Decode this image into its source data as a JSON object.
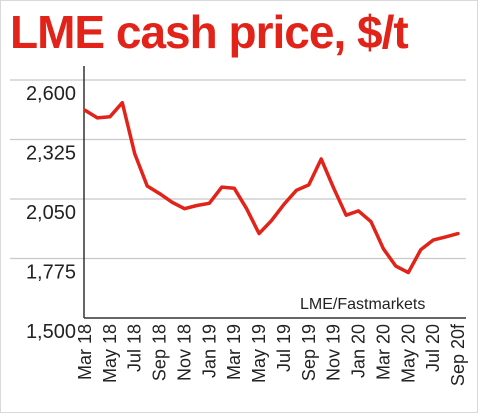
{
  "chart_data": {
    "type": "line",
    "title": "LME cash price, $/t",
    "source": "LME/Fastmarkets",
    "colors": {
      "title": "#e2231a",
      "line": "#e2231a",
      "grid": "#c8c8c8",
      "axis": "#333333"
    },
    "grid": true,
    "ylim": [
      1500,
      2600
    ],
    "y_ticks": [
      {
        "value": 2600,
        "label": "2,600"
      },
      {
        "value": 2325,
        "label": "2,325"
      },
      {
        "value": 2050,
        "label": "2,050"
      },
      {
        "value": 1775,
        "label": "1,775"
      },
      {
        "value": 1500,
        "label": "1,500"
      }
    ],
    "x_labels": [
      "Mar 18",
      "May 18",
      "Jul 18",
      "Sep 18",
      "Nov 18",
      "Jan 19",
      "Mar 19",
      "May 19",
      "Jul 19",
      "Sep 19",
      "Nov 19",
      "Jan 20",
      "Mar 20",
      "May 20",
      "Jul 20",
      "Sep 20f"
    ],
    "x": [
      0,
      0.5,
      1,
      1.5,
      2,
      2.5,
      3,
      3.5,
      4,
      4.5,
      5,
      5.5,
      6,
      6.5,
      7,
      7.5,
      8,
      8.5,
      9,
      9.5,
      10,
      10.5,
      11,
      11.5,
      12,
      12.5,
      13,
      13.5,
      14,
      14.5,
      15
    ],
    "series": [
      {
        "values": [
          2460,
          2425,
          2430,
          2495,
          2260,
          2110,
          2075,
          2035,
          2005,
          2020,
          2030,
          2105,
          2100,
          2005,
          1890,
          1950,
          2025,
          2090,
          2115,
          2235,
          2100,
          1975,
          1995,
          1945,
          1820,
          1740,
          1710,
          1815,
          1860,
          1875,
          1890
        ]
      }
    ]
  }
}
